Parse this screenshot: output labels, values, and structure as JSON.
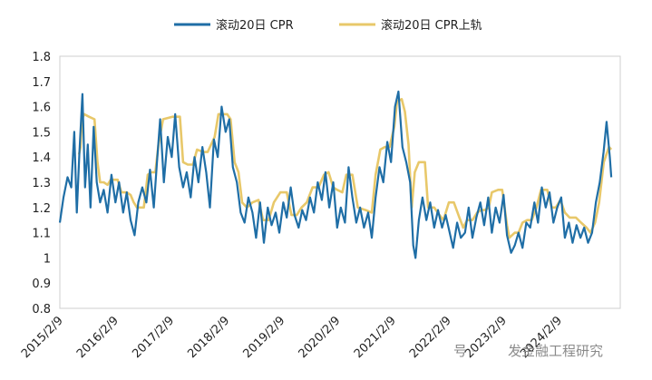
{
  "chart_data": {
    "type": "line",
    "title": "",
    "xlabel": "",
    "ylabel": "",
    "ylim": [
      0.8,
      1.8
    ],
    "yticks": [
      "0.8",
      "0.9",
      "1",
      "1.1",
      "1.2",
      "1.3",
      "1.4",
      "1.5",
      "1.6",
      "1.7",
      "1.8"
    ],
    "xlim": [
      "2015-02-09",
      "2025-03-20"
    ],
    "xticks": [
      "2015/2/9",
      "2016/2/9",
      "2017/2/9",
      "2018/2/9",
      "2019/2/9",
      "2020/2/9",
      "2021/2/9",
      "2022/2/9",
      "2023/2/9",
      "2024/2/9"
    ],
    "grid": "none",
    "legend_position": "top-center",
    "series": [
      {
        "name": "滚动20日 CPR",
        "color": "#1F6EA6",
        "points": [
          [
            "2015-02-09",
            1.14
          ],
          [
            "2015-03-05",
            1.24
          ],
          [
            "2015-04-01",
            1.32
          ],
          [
            "2015-04-25",
            1.28
          ],
          [
            "2015-05-15",
            1.5
          ],
          [
            "2015-06-01",
            1.18
          ],
          [
            "2015-06-18",
            1.42
          ],
          [
            "2015-07-08",
            1.65
          ],
          [
            "2015-07-25",
            1.28
          ],
          [
            "2015-08-12",
            1.45
          ],
          [
            "2015-08-30",
            1.2
          ],
          [
            "2015-09-20",
            1.52
          ],
          [
            "2015-10-10",
            1.3
          ],
          [
            "2015-11-01",
            1.22
          ],
          [
            "2015-11-25",
            1.27
          ],
          [
            "2015-12-20",
            1.18
          ],
          [
            "2016-01-15",
            1.33
          ],
          [
            "2016-02-10",
            1.22
          ],
          [
            "2016-03-05",
            1.3
          ],
          [
            "2016-04-01",
            1.18
          ],
          [
            "2016-04-25",
            1.26
          ],
          [
            "2016-05-20",
            1.15
          ],
          [
            "2016-06-15",
            1.09
          ],
          [
            "2016-07-10",
            1.22
          ],
          [
            "2016-08-05",
            1.28
          ],
          [
            "2016-09-01",
            1.22
          ],
          [
            "2016-09-25",
            1.35
          ],
          [
            "2016-10-20",
            1.2
          ],
          [
            "2016-11-10",
            1.38
          ],
          [
            "2016-12-01",
            1.55
          ],
          [
            "2016-12-25",
            1.3
          ],
          [
            "2017-01-20",
            1.48
          ],
          [
            "2017-02-15",
            1.4
          ],
          [
            "2017-03-10",
            1.57
          ],
          [
            "2017-04-05",
            1.36
          ],
          [
            "2017-05-01",
            1.28
          ],
          [
            "2017-05-25",
            1.34
          ],
          [
            "2017-06-20",
            1.24
          ],
          [
            "2017-07-15",
            1.4
          ],
          [
            "2017-08-10",
            1.3
          ],
          [
            "2017-09-05",
            1.44
          ],
          [
            "2017-09-30",
            1.34
          ],
          [
            "2017-10-25",
            1.2
          ],
          [
            "2017-11-20",
            1.47
          ],
          [
            "2017-12-15",
            1.4
          ],
          [
            "2018-01-10",
            1.6
          ],
          [
            "2018-02-05",
            1.5
          ],
          [
            "2018-03-01",
            1.55
          ],
          [
            "2018-03-25",
            1.36
          ],
          [
            "2018-04-20",
            1.3
          ],
          [
            "2018-05-15",
            1.18
          ],
          [
            "2018-06-10",
            1.14
          ],
          [
            "2018-07-05",
            1.24
          ],
          [
            "2018-08-01",
            1.18
          ],
          [
            "2018-08-25",
            1.08
          ],
          [
            "2018-09-20",
            1.22
          ],
          [
            "2018-10-15",
            1.06
          ],
          [
            "2018-11-10",
            1.2
          ],
          [
            "2018-12-05",
            1.13
          ],
          [
            "2019-01-01",
            1.18
          ],
          [
            "2019-01-25",
            1.1
          ],
          [
            "2019-02-20",
            1.22
          ],
          [
            "2019-03-15",
            1.16
          ],
          [
            "2019-04-10",
            1.28
          ],
          [
            "2019-05-05",
            1.17
          ],
          [
            "2019-06-01",
            1.12
          ],
          [
            "2019-06-25",
            1.19
          ],
          [
            "2019-07-20",
            1.15
          ],
          [
            "2019-08-15",
            1.24
          ],
          [
            "2019-09-10",
            1.18
          ],
          [
            "2019-10-05",
            1.3
          ],
          [
            "2019-11-01",
            1.23
          ],
          [
            "2019-11-25",
            1.34
          ],
          [
            "2019-12-20",
            1.2
          ],
          [
            "2020-01-15",
            1.3
          ],
          [
            "2020-02-10",
            1.12
          ],
          [
            "2020-03-05",
            1.2
          ],
          [
            "2020-04-01",
            1.14
          ],
          [
            "2020-04-25",
            1.36
          ],
          [
            "2020-05-20",
            1.24
          ],
          [
            "2020-06-15",
            1.14
          ],
          [
            "2020-07-10",
            1.2
          ],
          [
            "2020-08-05",
            1.12
          ],
          [
            "2020-09-01",
            1.18
          ],
          [
            "2020-09-25",
            1.08
          ],
          [
            "2020-10-20",
            1.24
          ],
          [
            "2020-11-15",
            1.36
          ],
          [
            "2020-12-10",
            1.3
          ],
          [
            "2021-01-05",
            1.46
          ],
          [
            "2021-01-30",
            1.38
          ],
          [
            "2021-02-25",
            1.6
          ],
          [
            "2021-03-20",
            1.66
          ],
          [
            "2021-04-15",
            1.44
          ],
          [
            "2021-05-10",
            1.38
          ],
          [
            "2021-06-05",
            1.3
          ],
          [
            "2021-06-25",
            1.05
          ],
          [
            "2021-07-10",
            1.0
          ],
          [
            "2021-08-01",
            1.15
          ],
          [
            "2021-08-25",
            1.24
          ],
          [
            "2021-09-20",
            1.15
          ],
          [
            "2021-10-15",
            1.22
          ],
          [
            "2021-11-10",
            1.12
          ],
          [
            "2021-12-05",
            1.19
          ],
          [
            "2022-01-01",
            1.12
          ],
          [
            "2022-01-25",
            1.17
          ],
          [
            "2022-02-20",
            1.1
          ],
          [
            "2022-03-15",
            1.04
          ],
          [
            "2022-04-10",
            1.14
          ],
          [
            "2022-05-05",
            1.08
          ],
          [
            "2022-06-01",
            1.1
          ],
          [
            "2022-06-25",
            1.2
          ],
          [
            "2022-07-20",
            1.08
          ],
          [
            "2022-08-15",
            1.16
          ],
          [
            "2022-09-10",
            1.22
          ],
          [
            "2022-10-05",
            1.13
          ],
          [
            "2022-11-01",
            1.24
          ],
          [
            "2022-11-25",
            1.1
          ],
          [
            "2022-12-20",
            1.2
          ],
          [
            "2023-01-15",
            1.14
          ],
          [
            "2023-02-10",
            1.25
          ],
          [
            "2023-03-05",
            1.09
          ],
          [
            "2023-04-01",
            1.02
          ],
          [
            "2023-04-25",
            1.05
          ],
          [
            "2023-05-20",
            1.1
          ],
          [
            "2023-06-15",
            1.04
          ],
          [
            "2023-07-10",
            1.14
          ],
          [
            "2023-08-05",
            1.12
          ],
          [
            "2023-09-01",
            1.22
          ],
          [
            "2023-09-25",
            1.14
          ],
          [
            "2023-10-20",
            1.28
          ],
          [
            "2023-11-15",
            1.2
          ],
          [
            "2023-12-10",
            1.26
          ],
          [
            "2024-01-05",
            1.14
          ],
          [
            "2024-01-30",
            1.2
          ],
          [
            "2024-02-25",
            1.24
          ],
          [
            "2024-03-20",
            1.08
          ],
          [
            "2024-04-15",
            1.14
          ],
          [
            "2024-05-10",
            1.06
          ],
          [
            "2024-06-05",
            1.13
          ],
          [
            "2024-07-01",
            1.08
          ],
          [
            "2024-07-25",
            1.12
          ],
          [
            "2024-08-20",
            1.06
          ],
          [
            "2024-09-15",
            1.1
          ],
          [
            "2024-10-10",
            1.22
          ],
          [
            "2024-11-05",
            1.3
          ],
          [
            "2024-11-30",
            1.42
          ],
          [
            "2024-12-20",
            1.54
          ],
          [
            "2025-01-10",
            1.4
          ],
          [
            "2025-01-20",
            1.32
          ]
        ]
      },
      {
        "name": "滚动20日 CPR上轨",
        "color": "#E8C86A",
        "points": [
          [
            "2015-06-15",
            1.41
          ],
          [
            "2015-06-25",
            1.44
          ],
          [
            "2015-07-05",
            1.55
          ],
          [
            "2015-07-20",
            1.57
          ],
          [
            "2015-08-20",
            1.56
          ],
          [
            "2015-09-25",
            1.55
          ],
          [
            "2015-10-15",
            1.38
          ],
          [
            "2015-11-01",
            1.3
          ],
          [
            "2015-11-25",
            1.3
          ],
          [
            "2015-12-20",
            1.29
          ],
          [
            "2016-01-10",
            1.31
          ],
          [
            "2016-02-25",
            1.31
          ],
          [
            "2016-03-20",
            1.26
          ],
          [
            "2016-04-25",
            1.26
          ],
          [
            "2016-05-20",
            1.25
          ],
          [
            "2016-06-10",
            1.22
          ],
          [
            "2016-07-01",
            1.2
          ],
          [
            "2016-08-15",
            1.2
          ],
          [
            "2016-09-10",
            1.33
          ],
          [
            "2016-10-05",
            1.34
          ],
          [
            "2016-10-30",
            1.34
          ],
          [
            "2016-11-20",
            1.45
          ],
          [
            "2016-12-20",
            1.55
          ],
          [
            "2017-02-20",
            1.56
          ],
          [
            "2017-04-10",
            1.56
          ],
          [
            "2017-05-01",
            1.38
          ],
          [
            "2017-06-01",
            1.37
          ],
          [
            "2017-07-05",
            1.37
          ],
          [
            "2017-08-01",
            1.43
          ],
          [
            "2017-09-10",
            1.42
          ],
          [
            "2017-10-10",
            1.42
          ],
          [
            "2017-11-25",
            1.48
          ],
          [
            "2017-12-20",
            1.57
          ],
          [
            "2018-02-15",
            1.57
          ],
          [
            "2018-03-10",
            1.55
          ],
          [
            "2018-04-05",
            1.38
          ],
          [
            "2018-05-01",
            1.34
          ],
          [
            "2018-05-25",
            1.22
          ],
          [
            "2018-06-25",
            1.2
          ],
          [
            "2018-08-01",
            1.22
          ],
          [
            "2018-09-10",
            1.23
          ],
          [
            "2018-10-10",
            1.15
          ],
          [
            "2018-11-15",
            1.15
          ],
          [
            "2018-12-20",
            1.22
          ],
          [
            "2019-02-01",
            1.26
          ],
          [
            "2019-03-15",
            1.26
          ],
          [
            "2019-04-15",
            1.17
          ],
          [
            "2019-05-20",
            1.17
          ],
          [
            "2019-06-20",
            1.2
          ],
          [
            "2019-07-25",
            1.22
          ],
          [
            "2019-09-01",
            1.28
          ],
          [
            "2019-10-10",
            1.28
          ],
          [
            "2019-11-15",
            1.33
          ],
          [
            "2019-12-15",
            1.34
          ],
          [
            "2020-01-15",
            1.28
          ],
          [
            "2020-02-10",
            1.27
          ],
          [
            "2020-03-15",
            1.26
          ],
          [
            "2020-04-10",
            1.33
          ],
          [
            "2020-05-20",
            1.33
          ],
          [
            "2020-06-25",
            1.2
          ],
          [
            "2020-08-15",
            1.19
          ],
          [
            "2020-09-25",
            1.18
          ],
          [
            "2020-10-20",
            1.33
          ],
          [
            "2020-11-20",
            1.43
          ],
          [
            "2020-12-20",
            1.44
          ],
          [
            "2021-01-20",
            1.44
          ],
          [
            "2021-02-20",
            1.52
          ],
          [
            "2021-03-10",
            1.62
          ],
          [
            "2021-04-10",
            1.63
          ],
          [
            "2021-05-01",
            1.58
          ],
          [
            "2021-05-25",
            1.45
          ],
          [
            "2021-06-15",
            1.2
          ],
          [
            "2021-07-05",
            1.34
          ],
          [
            "2021-08-01",
            1.38
          ],
          [
            "2021-09-10",
            1.38
          ],
          [
            "2021-10-01",
            1.2
          ],
          [
            "2021-11-10",
            1.2
          ],
          [
            "2021-12-15",
            1.17
          ],
          [
            "2022-01-10",
            1.15
          ],
          [
            "2022-02-15",
            1.22
          ],
          [
            "2022-03-20",
            1.22
          ],
          [
            "2022-04-25",
            1.16
          ],
          [
            "2022-05-20",
            1.12
          ],
          [
            "2022-06-15",
            1.15
          ],
          [
            "2022-07-20",
            1.15
          ],
          [
            "2022-08-20",
            1.18
          ],
          [
            "2022-09-15",
            1.19
          ],
          [
            "2022-10-10",
            1.19
          ],
          [
            "2022-11-05",
            1.2
          ],
          [
            "2022-11-25",
            1.26
          ],
          [
            "2023-01-05",
            1.27
          ],
          [
            "2023-02-01",
            1.27
          ],
          [
            "2023-03-05",
            1.13
          ],
          [
            "2023-03-20",
            1.08
          ],
          [
            "2023-04-25",
            1.1
          ],
          [
            "2023-05-20",
            1.1
          ],
          [
            "2023-06-15",
            1.14
          ],
          [
            "2023-07-15",
            1.15
          ],
          [
            "2023-08-15",
            1.15
          ],
          [
            "2023-09-15",
            1.2
          ],
          [
            "2023-10-15",
            1.27
          ],
          [
            "2023-11-25",
            1.27
          ],
          [
            "2023-12-25",
            1.2
          ],
          [
            "2024-01-20",
            1.2
          ],
          [
            "2024-02-20",
            1.23
          ],
          [
            "2024-03-20",
            1.18
          ],
          [
            "2024-04-20",
            1.16
          ],
          [
            "2024-06-01",
            1.16
          ],
          [
            "2024-07-05",
            1.14
          ],
          [
            "2024-08-10",
            1.12
          ],
          [
            "2024-09-05",
            1.1
          ],
          [
            "2024-10-05",
            1.14
          ],
          [
            "2024-11-01",
            1.22
          ],
          [
            "2024-12-01",
            1.38
          ],
          [
            "2025-01-05",
            1.44
          ],
          [
            "2025-01-20",
            1.43
          ]
        ]
      }
    ]
  },
  "watermark": {
    "prefix": "号 ·",
    "main": "发金融工程研究"
  }
}
